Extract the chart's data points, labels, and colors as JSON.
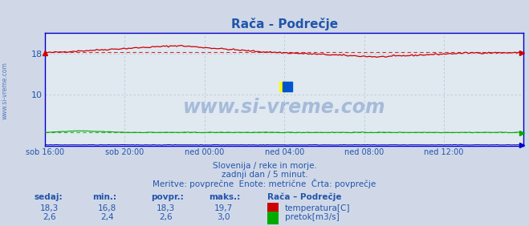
{
  "title": "Rača - Podrečje",
  "title_color": "#2255aa",
  "bg_color": "#d0d8e8",
  "plot_bg_color": "#e0e8f0",
  "grid_color": "#b8c8d8",
  "tick_color": "#2255aa",
  "x_tick_labels": [
    "sob 16:00",
    "sob 20:00",
    "ned 00:00",
    "ned 04:00",
    "ned 08:00",
    "ned 12:00"
  ],
  "x_tick_positions": [
    0,
    48,
    96,
    144,
    192,
    240
  ],
  "y_ticks": [
    10,
    18
  ],
  "ylim": [
    0,
    22
  ],
  "xlim": [
    0,
    288
  ],
  "temp_color": "#cc0000",
  "flow_color": "#00aa00",
  "height_color": "#0000cc",
  "axis_color": "#0000cc",
  "temp_avg": 18.3,
  "temp_min": 16.8,
  "temp_max": 19.7,
  "temp_current": 18.3,
  "flow_avg": 2.6,
  "flow_min": 2.4,
  "flow_max": 3.0,
  "flow_current": 2.6,
  "subtitle1": "Slovenija / reke in morje.",
  "subtitle2": "zadnji dan / 5 minut.",
  "subtitle3": "Meritve: povprečne  Enote: metrične  Črta: povprečje",
  "subtitle_color": "#2255aa",
  "table_header_color": "#2255aa",
  "table_value_color": "#2255aa",
  "watermark": "www.si-vreme.com",
  "watermark_color": "#2255aa",
  "watermark_alpha": 0.3,
  "side_text": "www.si-vreme.com",
  "side_text_color": "#2255aa"
}
